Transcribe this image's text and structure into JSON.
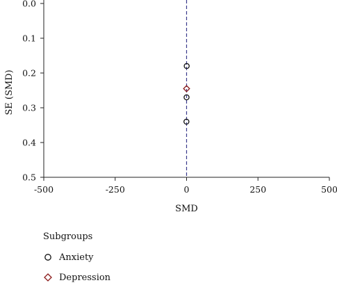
{
  "chart_data": {
    "type": "scatter",
    "title": "",
    "xlabel": "SMD",
    "ylabel": "SE (SMD)",
    "xlim": [
      -500,
      500
    ],
    "ylim": [
      0,
      0.5
    ],
    "y_inverted": true,
    "x_ticks": [
      "-500",
      "-250",
      "0",
      "250",
      "500"
    ],
    "y_ticks": [
      "0.0",
      "0.1",
      "0.2",
      "0.3",
      "0.4",
      "0.5"
    ],
    "reference_line": {
      "x": 0,
      "style": "dashed",
      "color": "#3a3a8c"
    },
    "legend": {
      "title": "Subgroups",
      "placement": "bottom-left"
    },
    "series": [
      {
        "name": "Anxiety",
        "marker": "circle",
        "color": "#111111",
        "points": [
          {
            "x": 0.5,
            "y": 0.18
          },
          {
            "x": 0,
            "y": 0.27
          },
          {
            "x": -0.5,
            "y": 0.34
          }
        ]
      },
      {
        "name": "Depression",
        "marker": "diamond",
        "color": "#8b1a1a",
        "points": [
          {
            "x": 0,
            "y": 0.245
          }
        ]
      }
    ]
  }
}
